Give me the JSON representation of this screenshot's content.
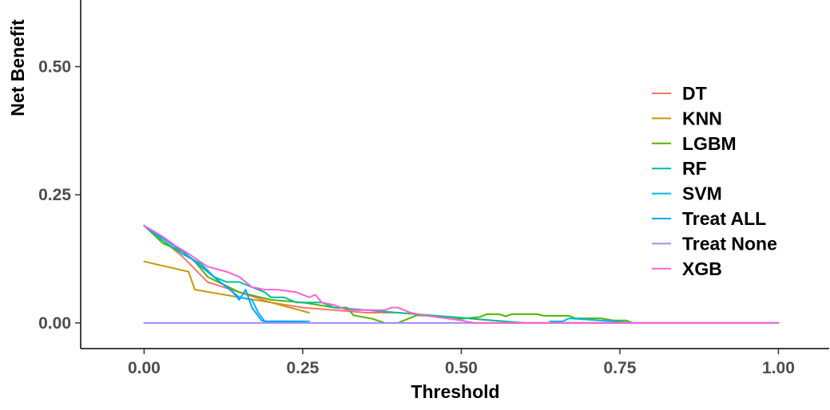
{
  "chart_data": {
    "type": "line",
    "title": "",
    "xlabel": "Threshold",
    "ylabel": "Net Benefit",
    "xlim": [
      -0.1,
      1.08
    ],
    "ylim": [
      -0.05,
      0.63
    ],
    "xticks": [
      0,
      0.25,
      0.5,
      0.75,
      1
    ],
    "xtick_labels": [
      "0.00",
      "0.25",
      "0.50",
      "0.75",
      "1.00"
    ],
    "yticks": [
      0,
      0.25,
      0.5
    ],
    "ytick_labels": [
      "0.00",
      "0.25",
      "0.50"
    ],
    "grid": false,
    "legend_position": "right",
    "series": [
      {
        "name": "DT",
        "color": "#F8766D",
        "segments": [
          [
            [
              0,
              0.19
            ],
            [
              0.03,
              0.16
            ],
            [
              0.06,
              0.13
            ],
            [
              0.1,
              0.08
            ],
            [
              0.15,
              0.06
            ],
            [
              0.2,
              0.04
            ],
            [
              0.25,
              0.03
            ],
            [
              0.3,
              0.025
            ],
            [
              0.35,
              0.02
            ],
            [
              0.4,
              0.02
            ],
            [
              0.45,
              0.015
            ],
            [
              0.5,
              0.01
            ],
            [
              0.55,
              0.005
            ],
            [
              0.6,
              0.0
            ],
            [
              0.77,
              0.0
            ],
            [
              1.0,
              0.0
            ]
          ]
        ]
      },
      {
        "name": "KNN",
        "color": "#C49A00",
        "segments": [
          [
            [
              0,
              0.12
            ],
            [
              0.07,
              0.1
            ],
            [
              0.08,
              0.065
            ],
            [
              0.15,
              0.05
            ],
            [
              0.2,
              0.04
            ],
            [
              0.26,
              0.02
            ]
          ]
        ]
      },
      {
        "name": "LGBM",
        "color": "#53B400",
        "segments": [
          [
            [
              0,
              0.19
            ],
            [
              0.03,
              0.155
            ],
            [
              0.06,
              0.14
            ],
            [
              0.08,
              0.12
            ],
            [
              0.1,
              0.09
            ],
            [
              0.15,
              0.06
            ],
            [
              0.2,
              0.045
            ],
            [
              0.25,
              0.04
            ],
            [
              0.3,
              0.03
            ],
            [
              0.32,
              0.03
            ],
            [
              0.33,
              0.015
            ],
            [
              0.36,
              0.008
            ],
            [
              0.38,
              0.0
            ],
            [
              0.4,
              0.0
            ],
            [
              0.43,
              0.015
            ],
            [
              0.48,
              0.012
            ],
            [
              0.5,
              0.008
            ],
            [
              0.53,
              0.012
            ],
            [
              0.54,
              0.017
            ],
            [
              0.56,
              0.017
            ],
            [
              0.57,
              0.013
            ],
            [
              0.58,
              0.017
            ],
            [
              0.62,
              0.017
            ],
            [
              0.63,
              0.014
            ],
            [
              0.67,
              0.014
            ],
            [
              0.68,
              0.009
            ],
            [
              0.72,
              0.009
            ],
            [
              0.74,
              0.005
            ],
            [
              0.76,
              0.005
            ],
            [
              0.77,
              0.0
            ],
            [
              1.0,
              0.0
            ]
          ]
        ]
      },
      {
        "name": "RF",
        "color": "#00C094",
        "segments": [
          [
            [
              0,
              0.19
            ],
            [
              0.03,
              0.16
            ],
            [
              0.06,
              0.135
            ],
            [
              0.09,
              0.115
            ],
            [
              0.11,
              0.09
            ],
            [
              0.13,
              0.08
            ],
            [
              0.15,
              0.08
            ],
            [
              0.17,
              0.07
            ],
            [
              0.19,
              0.06
            ],
            [
              0.2,
              0.05
            ],
            [
              0.22,
              0.05
            ],
            [
              0.24,
              0.04
            ],
            [
              0.28,
              0.04
            ],
            [
              0.3,
              0.03
            ],
            [
              0.35,
              0.025
            ],
            [
              0.4,
              0.02
            ],
            [
              0.45,
              0.015
            ],
            [
              0.5,
              0.01
            ],
            [
              0.55,
              0.005
            ],
            [
              0.6,
              0.0
            ],
            [
              0.77,
              0.0
            ],
            [
              1.0,
              0.0
            ]
          ]
        ]
      },
      {
        "name": "SVM",
        "color": "#00B6EB",
        "segments": [
          [
            [
              0,
              0.19
            ],
            [
              0.03,
              0.165
            ],
            [
              0.06,
              0.14
            ],
            [
              0.09,
              0.11
            ],
            [
              0.12,
              0.08
            ],
            [
              0.15,
              0.05
            ],
            [
              0.17,
              0.045
            ],
            [
              0.18,
              0.02
            ],
            [
              0.19,
              0.003
            ],
            [
              0.26,
              0.003
            ]
          ],
          [
            [
              0.64,
              0.003
            ],
            [
              0.66,
              0.003
            ],
            [
              0.67,
              0.009
            ],
            [
              0.74,
              0.003
            ],
            [
              0.77,
              0.0
            ]
          ]
        ]
      },
      {
        "name": "Treat ALL",
        "color": "#06A4FF",
        "segments": [
          [
            [
              0,
              0.19
            ],
            [
              0.03,
              0.165
            ],
            [
              0.06,
              0.14
            ],
            [
              0.09,
              0.11
            ],
            [
              0.12,
              0.08
            ],
            [
              0.14,
              0.06
            ],
            [
              0.15,
              0.045
            ],
            [
              0.16,
              0.065
            ],
            [
              0.17,
              0.03
            ],
            [
              0.185,
              0.005
            ],
            [
              0.19,
              0.003
            ],
            [
              0.25,
              0.003
            ]
          ]
        ]
      },
      {
        "name": "Treat None",
        "color": "#A58AFF",
        "segments": [
          [
            [
              0,
              0.0
            ],
            [
              1.0,
              0.0
            ]
          ]
        ]
      },
      {
        "name": "XGB",
        "color": "#FB61D7",
        "segments": [
          [
            [
              0,
              0.19
            ],
            [
              0.03,
              0.168
            ],
            [
              0.05,
              0.15
            ],
            [
              0.07,
              0.135
            ],
            [
              0.1,
              0.11
            ],
            [
              0.13,
              0.1
            ],
            [
              0.15,
              0.09
            ],
            [
              0.17,
              0.07
            ],
            [
              0.19,
              0.065
            ],
            [
              0.21,
              0.065
            ],
            [
              0.24,
              0.06
            ],
            [
              0.26,
              0.05
            ],
            [
              0.27,
              0.055
            ],
            [
              0.28,
              0.04
            ],
            [
              0.3,
              0.035
            ],
            [
              0.32,
              0.025
            ],
            [
              0.35,
              0.025
            ],
            [
              0.38,
              0.025
            ],
            [
              0.39,
              0.03
            ],
            [
              0.4,
              0.03
            ],
            [
              0.42,
              0.02
            ],
            [
              0.44,
              0.015
            ],
            [
              0.47,
              0.01
            ],
            [
              0.5,
              0.005
            ],
            [
              0.52,
              0.0
            ],
            [
              0.55,
              0.0
            ],
            [
              1.0,
              0.0
            ]
          ]
        ]
      }
    ]
  }
}
